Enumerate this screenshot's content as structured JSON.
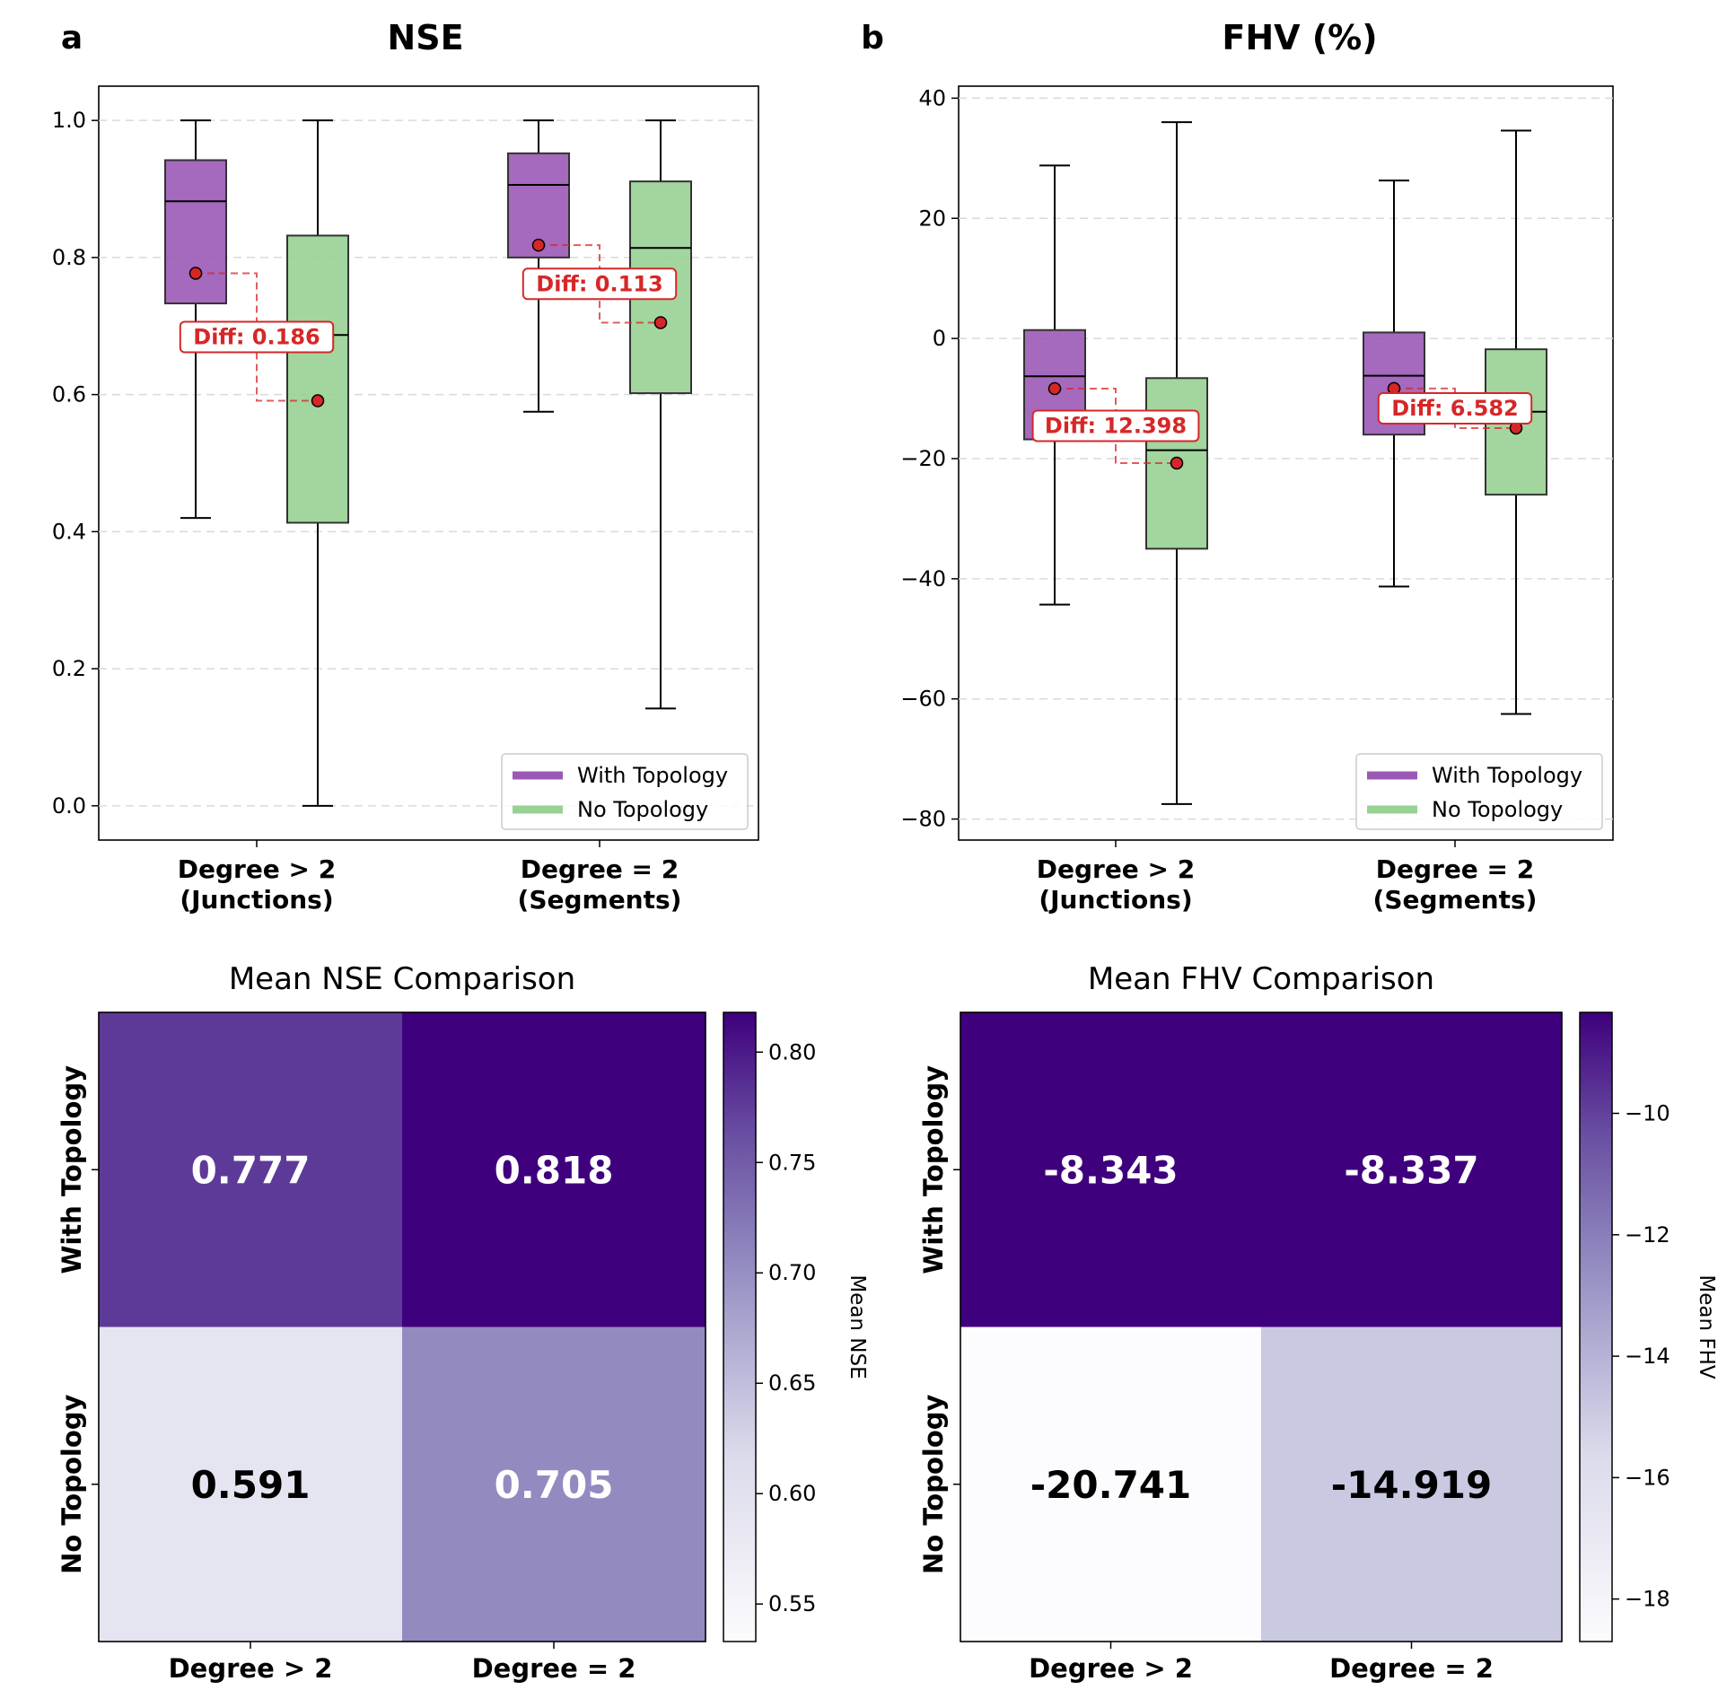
{
  "colors": {
    "with_topology": "#9b59b6",
    "no_topology": "#98d293",
    "diff": "#d62728",
    "heat_dark": "#3f007d",
    "heat_light": "#fcfbfd"
  },
  "panels": {
    "a": {
      "letter": "a",
      "title": "NSE"
    },
    "b": {
      "letter": "b",
      "title": "FHV (%)"
    }
  },
  "chart_data": [
    {
      "id": "box_nse",
      "type": "box",
      "title": "NSE",
      "panel_label": "a",
      "categories": [
        [
          "Degree > 2",
          "(Junctions)"
        ],
        [
          "Degree = 2",
          "(Segments)"
        ]
      ],
      "series": [
        {
          "name": "With Topology",
          "boxes": [
            {
              "whislo": 0.42,
              "q1": 0.733,
              "med": 0.882,
              "q3": 0.942,
              "whishi": 1.0,
              "mean": 0.777
            },
            {
              "whislo": 0.575,
              "q1": 0.8,
              "med": 0.906,
              "q3": 0.952,
              "whishi": 1.0,
              "mean": 0.818
            }
          ]
        },
        {
          "name": "No Topology",
          "boxes": [
            {
              "whislo": 0.0,
              "q1": 0.413,
              "med": 0.687,
              "q3": 0.832,
              "whishi": 1.0,
              "mean": 0.591
            },
            {
              "whislo": 0.142,
              "q1": 0.602,
              "med": 0.814,
              "q3": 0.911,
              "whishi": 1.0,
              "mean": 0.705
            }
          ]
        }
      ],
      "annotations": [
        "Diff: 0.186",
        "Diff: 0.113"
      ],
      "ylim": [
        -0.05,
        1.05
      ],
      "yticks": [
        0.0,
        0.2,
        0.4,
        0.6,
        0.8,
        1.0
      ],
      "ytick_labels": [
        "0.0",
        "0.2",
        "0.4",
        "0.6",
        "0.8",
        "1.0"
      ],
      "grid": true,
      "legend": [
        "With Topology",
        "No Topology"
      ],
      "legend_loc": "lower-right"
    },
    {
      "id": "box_fhv",
      "type": "box",
      "title": "FHV (%)",
      "panel_label": "b",
      "categories": [
        [
          "Degree > 2",
          "(Junctions)"
        ],
        [
          "Degree = 2",
          "(Segments)"
        ]
      ],
      "series": [
        {
          "name": "With Topology",
          "boxes": [
            {
              "whislo": -44.3,
              "q1": -16.8,
              "med": -6.3,
              "q3": 1.4,
              "whishi": 28.8,
              "mean": -8.343
            },
            {
              "whislo": -41.3,
              "q1": -16.0,
              "med": -6.2,
              "q3": 1.0,
              "whishi": 26.3,
              "mean": -8.337
            }
          ]
        },
        {
          "name": "No Topology",
          "boxes": [
            {
              "whislo": -77.5,
              "q1": -35.0,
              "med": -18.6,
              "q3": -6.6,
              "whishi": 36.0,
              "mean": -20.741
            },
            {
              "whislo": -62.5,
              "q1": -26.0,
              "med": -12.2,
              "q3": -1.8,
              "whishi": 34.6,
              "mean": -14.919
            }
          ]
        }
      ],
      "annotations": [
        "Diff: 12.398",
        "Diff: 6.582"
      ],
      "ylim": [
        -83.5,
        42.0
      ],
      "yticks": [
        -80,
        -60,
        -40,
        -20,
        0,
        20,
        40
      ],
      "ytick_labels": [
        "−80",
        "−60",
        "−40",
        "−20",
        "0",
        "20",
        "40"
      ],
      "grid": true,
      "legend": [
        "With Topology",
        "No Topology"
      ],
      "legend_loc": "lower-right"
    },
    {
      "id": "heat_nse",
      "type": "heatmap",
      "title": "Mean NSE Comparison",
      "x_labels": [
        "Degree > 2",
        "Degree = 2"
      ],
      "y_labels": [
        "With Topology",
        "No Topology"
      ],
      "values": [
        [
          0.777,
          0.818
        ],
        [
          0.591,
          0.705
        ]
      ],
      "value_labels": [
        [
          "0.777",
          "0.818"
        ],
        [
          "0.591",
          "0.705"
        ]
      ],
      "colorbar_label": "Mean NSE",
      "vmin": 0.533,
      "vmax": 0.818,
      "colorbar_ticks": [
        0.55,
        0.6,
        0.65,
        0.7,
        0.75,
        0.8
      ],
      "colorbar_tick_labels": [
        "0.55",
        "0.60",
        "0.65",
        "0.70",
        "0.75",
        "0.80"
      ]
    },
    {
      "id": "heat_fhv",
      "type": "heatmap",
      "title": "Mean FHV Comparison",
      "x_labels": [
        "Degree > 2",
        "Degree = 2"
      ],
      "y_labels": [
        "With Topology",
        "No Topology"
      ],
      "values": [
        [
          -8.343,
          -8.337
        ],
        [
          -20.741,
          -14.919
        ]
      ],
      "value_labels": [
        [
          "-8.343",
          "-8.337"
        ],
        [
          "-20.741",
          "-14.919"
        ]
      ],
      "colorbar_label": "Mean FHV",
      "vmin": -18.7,
      "vmax": -8.337,
      "colorbar_ticks": [
        -18,
        -16,
        -14,
        -12,
        -10
      ],
      "colorbar_tick_labels": [
        "−18",
        "−16",
        "−14",
        "−12",
        "−10"
      ]
    }
  ]
}
